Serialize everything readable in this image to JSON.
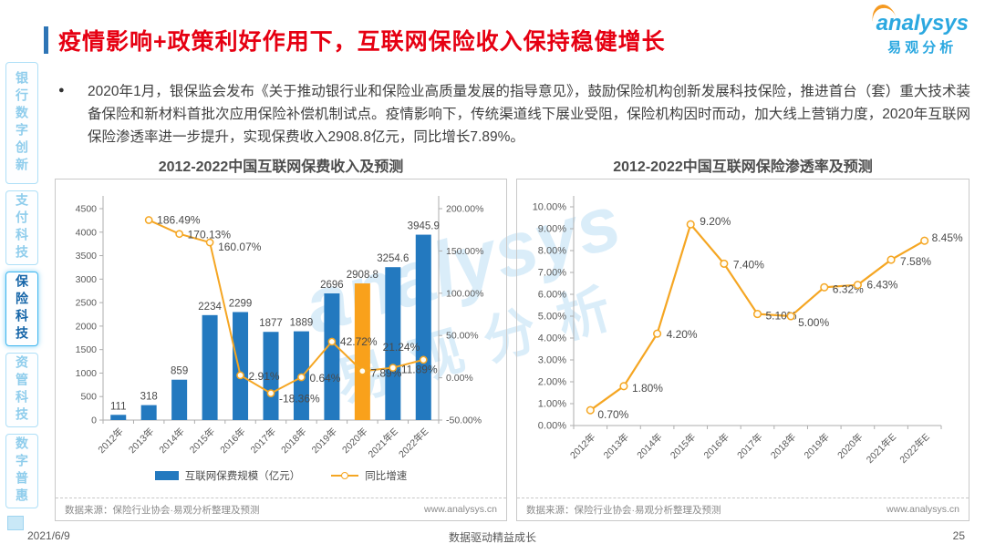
{
  "page": {
    "title": "疫情影响+政策利好作用下，互联网保险收入保持稳健增长",
    "logo": {
      "brand": "analysys",
      "brand_cn": "易观分析"
    },
    "footer": {
      "date": "2021/6/9",
      "slogan": "数据驱动精益成长",
      "page_number": "25"
    }
  },
  "sidebar": {
    "items": [
      {
        "label": "银行数字创新",
        "active": false
      },
      {
        "label": "支付科技",
        "active": false
      },
      {
        "label": "保险科技",
        "active": true
      },
      {
        "label": "资管科技",
        "active": false
      },
      {
        "label": "数字普惠",
        "active": false
      }
    ]
  },
  "bullet": {
    "text": "2020年1月，银保监会发布《关于推动银行业和保险业高质量发展的指导意见》，鼓励保险机构创新发展科技保险，推进首台（套）重大技术装备保险和新材料首批次应用保险补偿机制试点。疫情影响下，传统渠道线下展业受阻，保险机构因时而动，加大线上营销力度，2020年互联网保险渗透率进一步提升，实现保费收入2908.8亿元，同比增长7.89%。"
  },
  "chart_data": [
    {
      "type": "bar",
      "title": "2012-2022中国互联网保费收入及预测",
      "categories": [
        "2012年",
        "2013年",
        "2014年",
        "2015年",
        "2016年",
        "2017年",
        "2018年",
        "2019年",
        "2020年",
        "2021年E",
        "2022年E"
      ],
      "series": [
        {
          "name": "互联网保费规模（亿元）",
          "type": "bar",
          "values": [
            111,
            318,
            859,
            2234,
            2299,
            1877,
            1889,
            2696,
            2908.8,
            3254.6,
            3945.9
          ],
          "highlight_index": 8,
          "color": "#2379BF",
          "highlight_color": "#F9A11B"
        },
        {
          "name": "同比增速",
          "type": "line",
          "values": [
            null,
            186.49,
            170.13,
            160.07,
            2.91,
            -18.36,
            0.64,
            42.72,
            7.89,
            11.89,
            21.24
          ],
          "color": "#F5A623"
        }
      ],
      "left_axis": {
        "min": 0,
        "max": 4500,
        "step": 500
      },
      "right_axis": {
        "min": -50,
        "max": 200,
        "step": 50
      },
      "legend_position": "bottom",
      "grid": false,
      "source": "数据来源：保险行业协会·易观分析整理及预测",
      "website": "www.analysys.cn"
    },
    {
      "type": "line",
      "title": "2012-2022中国互联网保险渗透率及预测",
      "categories": [
        "2012年",
        "2013年",
        "2014年",
        "2015年",
        "2016年",
        "2017年",
        "2018年",
        "2019年",
        "2020年",
        "2021年E",
        "2022年E"
      ],
      "series": [
        {
          "type": "line",
          "values": [
            0.7,
            1.8,
            4.2,
            9.2,
            7.4,
            5.1,
            5.0,
            6.32,
            6.43,
            7.58,
            8.45
          ],
          "color": "#F5A623"
        }
      ],
      "y_axis": {
        "min": 0,
        "max": 10,
        "step": 1
      },
      "grid": false,
      "source": "数据来源：保险行业协会·易观分析整理及预测",
      "website": "www.analysys.cn"
    }
  ],
  "colors": {
    "title_red": "#E60012",
    "accent_blue": "#2E75B6",
    "bar_blue": "#2379BF",
    "bar_highlight": "#F9A11B",
    "line_orange": "#F5A623",
    "sidebar_active_text": "#1565A8",
    "watermark_blue": "#8CC8EB"
  }
}
